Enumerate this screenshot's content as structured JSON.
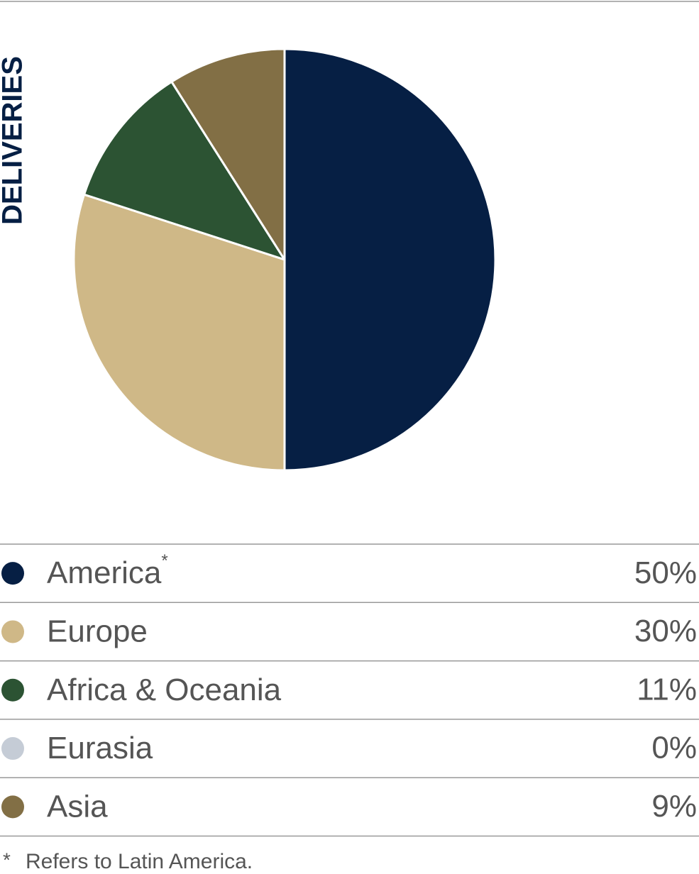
{
  "chart_data": {
    "type": "pie",
    "title": "DELIVERIES",
    "categories": [
      "America",
      "Europe",
      "Africa & Oceania",
      "Eurasia",
      "Asia"
    ],
    "markers": [
      "*",
      null,
      null,
      null,
      null
    ],
    "values": [
      50,
      30,
      11,
      0,
      9
    ],
    "value_labels": [
      "50%",
      "30%",
      "11%",
      "0%",
      "9%"
    ],
    "colors": [
      "#061f44",
      "#cfb887",
      "#2c5333",
      "#c5ccd6",
      "#826f45"
    ],
    "footnote": {
      "marker": "*",
      "text": "Refers to Latin America."
    }
  }
}
